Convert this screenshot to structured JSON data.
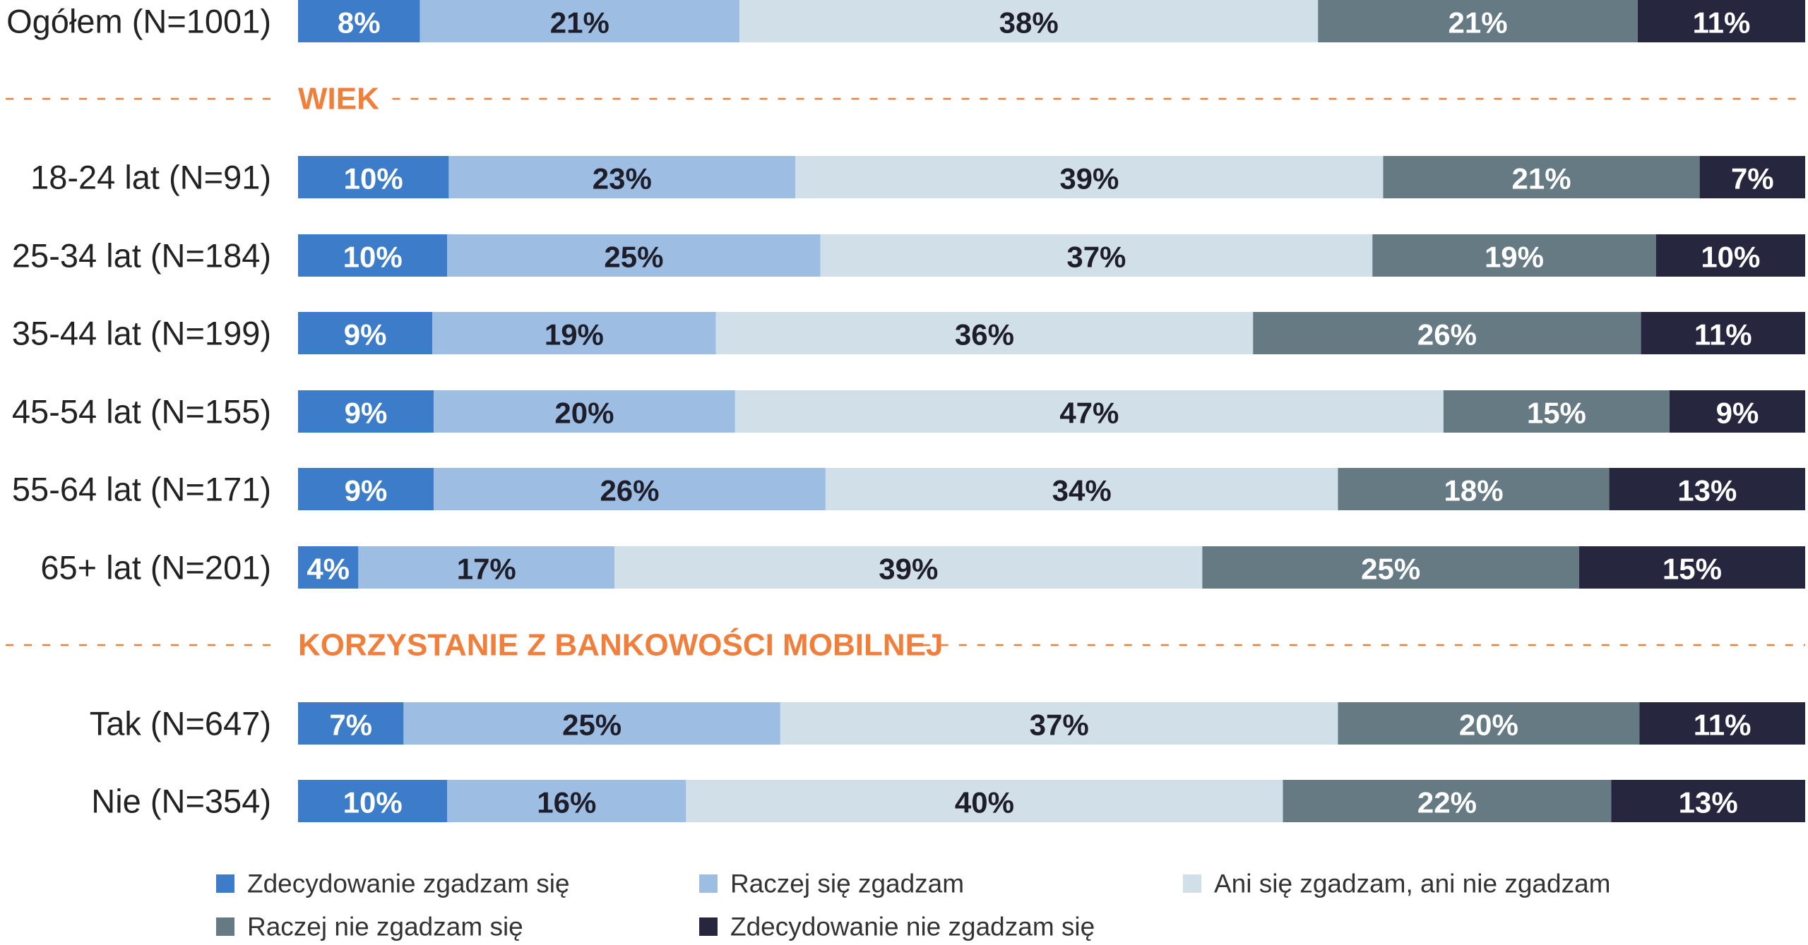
{
  "chart_data": {
    "type": "bar",
    "orientation": "horizontal",
    "stacked": true,
    "unit": "%",
    "xlim": [
      0,
      100
    ],
    "grid": false,
    "legend_position": "bottom",
    "series": [
      {
        "name": "Zdecydowanie zgadzam się",
        "color": "#3d7cc9",
        "label_color": "#ffffff"
      },
      {
        "name": "Raczej się zgadzam",
        "color": "#9dbde3",
        "label_color": "#1e1e2a"
      },
      {
        "name": "Ani się zgadzam, ani nie zgadzam",
        "color": "#d0dfe8",
        "label_color": "#1e1e2a"
      },
      {
        "name": "Raczej nie zgadzam się",
        "color": "#657a83",
        "label_color": "#ffffff"
      },
      {
        "name": "Zdecydowanie nie zgadzam się",
        "color": "#27263f",
        "label_color": "#ffffff"
      }
    ],
    "rows": [
      {
        "type": "bar",
        "label": "Ogółem (N=1001)",
        "values": [
          8,
          21,
          38,
          21,
          11
        ]
      },
      {
        "type": "section",
        "title": "WIEK"
      },
      {
        "type": "bar",
        "label": "18-24 lat (N=91)",
        "values": [
          10,
          23,
          39,
          21,
          7
        ]
      },
      {
        "type": "bar",
        "label": "25-34 lat (N=184)",
        "values": [
          10,
          25,
          37,
          19,
          10
        ]
      },
      {
        "type": "bar",
        "label": "35-44 lat (N=199)",
        "values": [
          9,
          19,
          36,
          26,
          11
        ]
      },
      {
        "type": "bar",
        "label": "45-54 lat (N=155)",
        "values": [
          9,
          20,
          47,
          15,
          9
        ]
      },
      {
        "type": "bar",
        "label": "55-64 lat (N=171)",
        "values": [
          9,
          26,
          34,
          18,
          13
        ]
      },
      {
        "type": "bar",
        "label": "65+ lat (N=201)",
        "values": [
          4,
          17,
          39,
          25,
          15
        ]
      },
      {
        "type": "section",
        "title": "KORZYSTANIE Z BANKOWOŚCI MOBILNEJ"
      },
      {
        "type": "bar",
        "label": "Tak (N=647)",
        "values": [
          7,
          25,
          37,
          20,
          11
        ]
      },
      {
        "type": "bar",
        "label": "Nie (N=354)",
        "values": [
          10,
          16,
          40,
          22,
          13
        ]
      }
    ],
    "section_color": "#f07f3c"
  }
}
